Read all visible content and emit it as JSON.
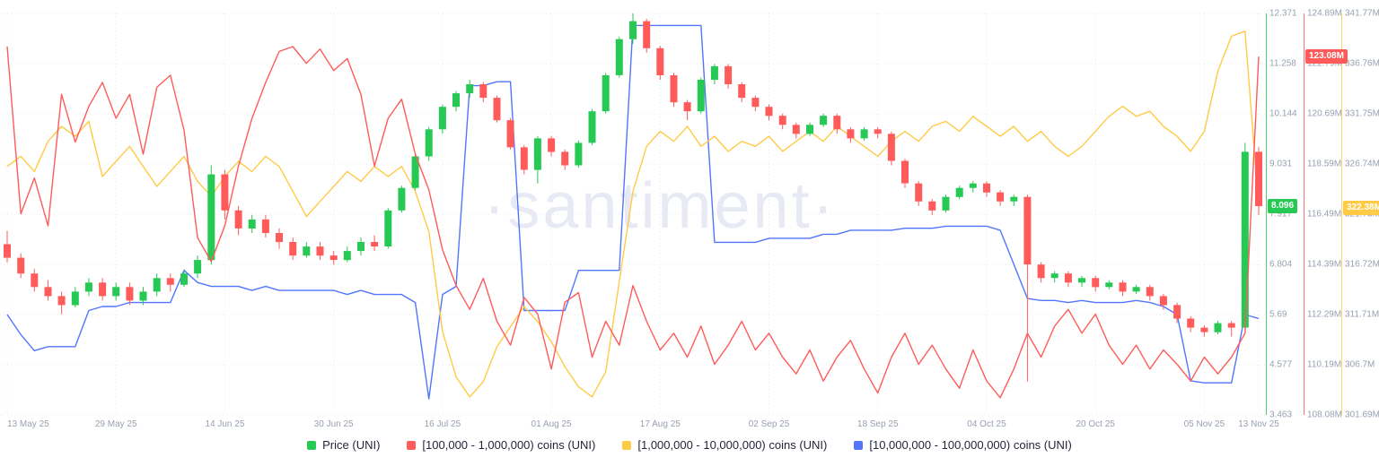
{
  "watermark": "·santiment·",
  "legend": [
    {
      "label": "Price (UNI)",
      "color": "#26c953"
    },
    {
      "label": "[100,000  - 1,000,000) coins (UNI)",
      "color": "#ff5b5b"
    },
    {
      "label": "[1,000,000 - 10,000,000) coins (UNI)",
      "color": "#ffcb47"
    },
    {
      "label": "[10,000,000 - 100,000,000) coins (UNI)",
      "color": "#5275ff"
    }
  ],
  "chart_data": {
    "type": "candlestick+line",
    "grid": true,
    "legend_position": "bottom-center",
    "x_axis": {
      "tick_labels": [
        "13 May 25",
        "29 May 25",
        "14 Jun 25",
        "30 Jun 25",
        "16 Jul 25",
        "01 Aug 25",
        "17 Aug 25",
        "02 Sep 25",
        "18 Sep 25",
        "04 Oct 25",
        "20 Oct 25",
        "05 Nov 25",
        "13 Nov 25"
      ],
      "tick_days": [
        0,
        16,
        32,
        48,
        64,
        80,
        96,
        112,
        128,
        144,
        160,
        176,
        184
      ],
      "total_days": 184
    },
    "axes": {
      "price": {
        "label": "Price (UNI)",
        "color": "#26c953",
        "up_color": "#26c953",
        "down_color": "#ff5b5b",
        "min": 3.463,
        "max": 12.371,
        "ticks_top_to_bottom": [
          "12.371",
          "11.258",
          "10.144",
          "9.031",
          "7.917",
          "6.804",
          "5.69",
          "4.577",
          "3.463"
        ],
        "current_badge": "8.096",
        "current_value": 8.096
      },
      "coins_100k_1m": {
        "label": "[100,000  - 1,000,000) coins (UNI)",
        "color": "#ff5b5b",
        "min": 108.08,
        "max": 124.89,
        "unit": "M",
        "ticks_top_to_bottom": [
          "124.89M",
          "122.79M",
          "120.69M",
          "118.59M",
          "116.49M",
          "114.39M",
          "112.29M",
          "110.19M",
          "108.08M"
        ],
        "current_badge": "123.08M",
        "current_value": 123.08
      },
      "coins_1m_10m": {
        "label": "[1,000,000 - 10,000,000) coins (UNI)",
        "color": "#ffcb47",
        "min": 301.69,
        "max": 341.77,
        "unit": "M",
        "ticks_top_to_bottom": [
          "341.77M",
          "336.76M",
          "331.75M",
          "326.74M",
          "321.73M",
          "316.72M",
          "311.71M",
          "306.7M",
          "301.69M"
        ],
        "current_badge": "322.38M",
        "current_value": 322.38
      },
      "coins_10m_100m": {
        "label": "[10,000,000 - 100,000,000) coins (UNI)",
        "color": "#5275ff",
        "axis_hidden": true,
        "scale": "normalized_0_to_1_of_plot_height"
      }
    },
    "series": {
      "price_ohlc": [
        [
          7.25,
          7.55,
          6.85,
          6.95
        ],
        [
          6.95,
          7.05,
          6.5,
          6.6
        ],
        [
          6.6,
          6.7,
          6.2,
          6.3
        ],
        [
          6.3,
          6.45,
          6.0,
          6.1
        ],
        [
          6.1,
          6.2,
          5.7,
          5.9
        ],
        [
          5.9,
          6.3,
          5.85,
          6.2
        ],
        [
          6.2,
          6.5,
          6.1,
          6.4
        ],
        [
          6.4,
          6.5,
          6.0,
          6.1
        ],
        [
          6.1,
          6.4,
          6.0,
          6.3
        ],
        [
          6.3,
          6.4,
          5.9,
          6.0
        ],
        [
          6.0,
          6.3,
          5.9,
          6.2
        ],
        [
          6.2,
          6.6,
          6.1,
          6.5
        ],
        [
          6.5,
          6.6,
          6.2,
          6.35
        ],
        [
          6.35,
          6.7,
          6.3,
          6.6
        ],
        [
          6.6,
          7.0,
          6.5,
          6.9
        ],
        [
          6.9,
          9.0,
          6.8,
          8.8
        ],
        [
          8.8,
          8.9,
          7.8,
          8.0
        ],
        [
          8.0,
          8.1,
          7.45,
          7.6
        ],
        [
          7.6,
          7.9,
          7.5,
          7.8
        ],
        [
          7.8,
          7.9,
          7.4,
          7.5
        ],
        [
          7.5,
          7.6,
          7.15,
          7.3
        ],
        [
          7.3,
          7.4,
          6.9,
          7.0
        ],
        [
          7.0,
          7.3,
          6.95,
          7.2
        ],
        [
          7.2,
          7.3,
          6.9,
          7.0
        ],
        [
          7.0,
          7.1,
          6.8,
          6.9
        ],
        [
          6.9,
          7.2,
          6.85,
          7.1
        ],
        [
          7.1,
          7.4,
          7.0,
          7.3
        ],
        [
          7.3,
          7.45,
          7.1,
          7.2
        ],
        [
          7.2,
          8.05,
          7.15,
          8.0
        ],
        [
          8.0,
          8.55,
          7.95,
          8.5
        ],
        [
          8.5,
          9.25,
          8.45,
          9.2
        ],
        [
          9.2,
          9.85,
          9.1,
          9.8
        ],
        [
          9.8,
          10.35,
          9.7,
          10.3
        ],
        [
          10.3,
          10.65,
          10.2,
          10.6
        ],
        [
          10.6,
          10.9,
          10.5,
          10.8
        ],
        [
          10.8,
          10.85,
          10.4,
          10.5
        ],
        [
          10.5,
          10.55,
          9.95,
          10.0
        ],
        [
          10.0,
          10.05,
          9.35,
          9.4
        ],
        [
          9.4,
          9.45,
          8.8,
          8.9
        ],
        [
          8.9,
          9.65,
          8.6,
          9.6
        ],
        [
          9.6,
          9.65,
          9.2,
          9.3
        ],
        [
          9.3,
          9.35,
          8.9,
          9.0
        ],
        [
          9.0,
          9.55,
          8.95,
          9.5
        ],
        [
          9.5,
          10.25,
          9.45,
          10.2
        ],
        [
          10.2,
          11.05,
          10.15,
          11.0
        ],
        [
          11.0,
          11.85,
          10.95,
          11.8
        ],
        [
          11.8,
          12.371,
          11.7,
          12.2
        ],
        [
          12.2,
          12.25,
          11.5,
          11.6
        ],
        [
          11.6,
          11.65,
          10.9,
          11.0
        ],
        [
          11.0,
          11.05,
          10.3,
          10.4
        ],
        [
          10.4,
          10.45,
          10.0,
          10.2
        ],
        [
          10.2,
          10.95,
          10.15,
          10.9
        ],
        [
          10.9,
          11.25,
          10.8,
          11.2
        ],
        [
          11.2,
          11.25,
          10.7,
          10.8
        ],
        [
          10.8,
          10.85,
          10.4,
          10.5
        ],
        [
          10.5,
          10.55,
          10.2,
          10.3
        ],
        [
          10.3,
          10.35,
          10.0,
          10.1
        ],
        [
          10.1,
          10.15,
          9.8,
          9.9
        ],
        [
          9.9,
          9.95,
          9.6,
          9.7
        ],
        [
          9.7,
          9.95,
          9.65,
          9.9
        ],
        [
          9.9,
          10.15,
          9.85,
          10.1
        ],
        [
          10.1,
          10.15,
          9.7,
          9.8
        ],
        [
          9.8,
          9.85,
          9.5,
          9.6
        ],
        [
          9.6,
          9.85,
          9.55,
          9.8
        ],
        [
          9.8,
          9.85,
          9.6,
          9.7
        ],
        [
          9.7,
          9.75,
          9.0,
          9.1
        ],
        [
          9.1,
          9.15,
          8.5,
          8.6
        ],
        [
          8.6,
          8.65,
          8.1,
          8.2
        ],
        [
          8.2,
          8.25,
          7.9,
          8.0
        ],
        [
          8.0,
          8.35,
          7.95,
          8.3
        ],
        [
          8.3,
          8.55,
          8.25,
          8.5
        ],
        [
          8.5,
          8.65,
          8.4,
          8.6
        ],
        [
          8.6,
          8.65,
          8.3,
          8.4
        ],
        [
          8.4,
          8.45,
          8.1,
          8.2
        ],
        [
          8.2,
          8.35,
          8.1,
          8.3
        ],
        [
          8.3,
          8.35,
          4.2,
          6.8
        ],
        [
          6.8,
          6.85,
          6.4,
          6.5
        ],
        [
          6.5,
          6.65,
          6.4,
          6.6
        ],
        [
          6.6,
          6.65,
          6.3,
          6.4
        ],
        [
          6.4,
          6.55,
          6.3,
          6.5
        ],
        [
          6.5,
          6.55,
          6.2,
          6.3
        ],
        [
          6.3,
          6.45,
          6.25,
          6.4
        ],
        [
          6.4,
          6.45,
          6.1,
          6.2
        ],
        [
          6.2,
          6.35,
          6.15,
          6.3
        ],
        [
          6.3,
          6.35,
          6.0,
          6.1
        ],
        [
          6.1,
          6.15,
          5.8,
          5.9
        ],
        [
          5.9,
          5.95,
          5.5,
          5.6
        ],
        [
          5.6,
          5.65,
          5.3,
          5.4
        ],
        [
          5.4,
          5.45,
          5.2,
          5.3
        ],
        [
          5.3,
          5.55,
          5.25,
          5.5
        ],
        [
          5.5,
          5.55,
          5.2,
          5.4
        ],
        [
          5.4,
          9.5,
          5.35,
          9.3
        ],
        [
          9.3,
          9.4,
          7.9,
          8.096
        ]
      ],
      "coins_100k_1m": [
        123.5,
        116.5,
        118,
        116,
        121.5,
        119.5,
        121,
        122,
        120.5,
        121.5,
        119,
        121.8,
        122.3,
        120,
        115.5,
        114.5,
        116,
        118.5,
        120.5,
        122,
        123.3,
        123.5,
        122.8,
        123.4,
        122.5,
        123,
        121.5,
        118.5,
        120.5,
        121.3,
        119,
        117.5,
        115,
        113.5,
        112.5,
        113.8,
        112,
        111,
        113,
        112.3,
        110,
        112.8,
        113.2,
        110.5,
        112,
        111,
        113.5,
        112,
        110.8,
        111.5,
        110.5,
        111.8,
        110.2,
        111,
        112,
        110.8,
        111.5,
        110.5,
        109.8,
        110.8,
        109.5,
        110.5,
        111.2,
        110,
        109,
        110.5,
        111.5,
        110.2,
        111,
        110,
        109.2,
        110.8,
        109.5,
        108.8,
        110,
        111.5,
        110.5,
        111.8,
        112.5,
        111.5,
        112.3,
        111,
        110.2,
        111,
        110,
        110.8,
        110.2,
        109.5,
        110.5,
        109.8,
        110.5,
        111.5,
        123.08
      ],
      "coins_1m_10m": [
        326.5,
        327.5,
        326,
        329,
        330.5,
        329.5,
        331,
        325.5,
        327,
        328.5,
        326.5,
        324.5,
        326,
        327.5,
        325,
        323.5,
        325.5,
        327,
        326,
        327.5,
        326.5,
        324,
        321.5,
        323,
        324.5,
        326,
        325,
        326.5,
        325.5,
        326.5,
        324,
        320,
        310,
        305.5,
        303.5,
        305,
        308.5,
        310.5,
        312.5,
        311,
        309,
        306.5,
        304.5,
        303.5,
        306,
        315,
        324,
        328.5,
        330,
        329,
        330.5,
        328.5,
        329.5,
        328,
        329,
        328.5,
        329.5,
        328,
        329,
        330,
        329,
        330.5,
        329.5,
        328.5,
        327.5,
        329,
        330,
        329,
        330.5,
        331,
        330,
        331.5,
        330.5,
        329.5,
        330.5,
        329,
        330,
        328.5,
        327.5,
        328.5,
        330,
        331.5,
        332.5,
        331.5,
        332,
        330.5,
        329.5,
        328,
        330,
        336,
        339.5,
        340,
        322.38
      ],
      "coins_10m_100m_norm": [
        0.25,
        0.2,
        0.16,
        0.17,
        0.17,
        0.17,
        0.26,
        0.27,
        0.27,
        0.28,
        0.28,
        0.28,
        0.28,
        0.36,
        0.33,
        0.32,
        0.32,
        0.32,
        0.31,
        0.32,
        0.31,
        0.31,
        0.31,
        0.31,
        0.31,
        0.3,
        0.31,
        0.3,
        0.3,
        0.3,
        0.28,
        0.04,
        0.3,
        0.32,
        0.82,
        0.82,
        0.83,
        0.83,
        0.26,
        0.26,
        0.26,
        0.26,
        0.36,
        0.36,
        0.36,
        0.36,
        0.97,
        0.97,
        0.97,
        0.97,
        0.97,
        0.97,
        0.43,
        0.43,
        0.43,
        0.43,
        0.44,
        0.44,
        0.44,
        0.44,
        0.45,
        0.45,
        0.46,
        0.46,
        0.46,
        0.46,
        0.465,
        0.465,
        0.465,
        0.47,
        0.47,
        0.47,
        0.47,
        0.46,
        0.375,
        0.29,
        0.285,
        0.285,
        0.28,
        0.285,
        0.28,
        0.28,
        0.28,
        0.285,
        0.28,
        0.27,
        0.25,
        0.085,
        0.08,
        0.08,
        0.08,
        0.25,
        0.24
      ]
    }
  }
}
